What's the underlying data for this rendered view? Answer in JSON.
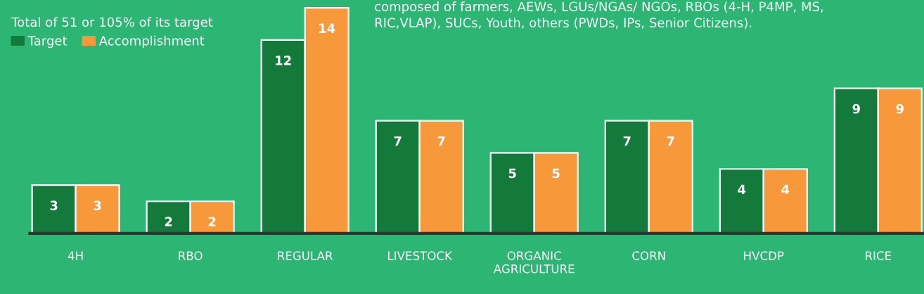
{
  "chart_data": {
    "type": "bar",
    "legend_title": "Total of 51 or 105% of its target",
    "annotations": [
      "composed of farmers, AEWs, LGUs/NGAs/ NGOs, RBOs (4-H, P4MP, MS,\nRIC,VLAP), SUCs, Youth, others (PWDs, IPs, Senior Citizens)."
    ],
    "categories": [
      "4H",
      "RBO",
      "REGULAR",
      "LIVESTOCK",
      "ORGANIC\nAGRICULTURE",
      "CORN",
      "HVCDP",
      "RICE"
    ],
    "series": [
      {
        "name": "Target",
        "color": "#137a3c",
        "values": [
          3,
          2,
          12,
          7,
          5,
          7,
          4,
          9
        ]
      },
      {
        "name": "Accomplishment",
        "color": "#f7993b",
        "values": [
          3,
          2,
          14,
          7,
          5,
          7,
          4,
          9
        ]
      }
    ],
    "data_labels": true,
    "legend": "top left",
    "tick_labels": "x",
    "grid": false
  }
}
